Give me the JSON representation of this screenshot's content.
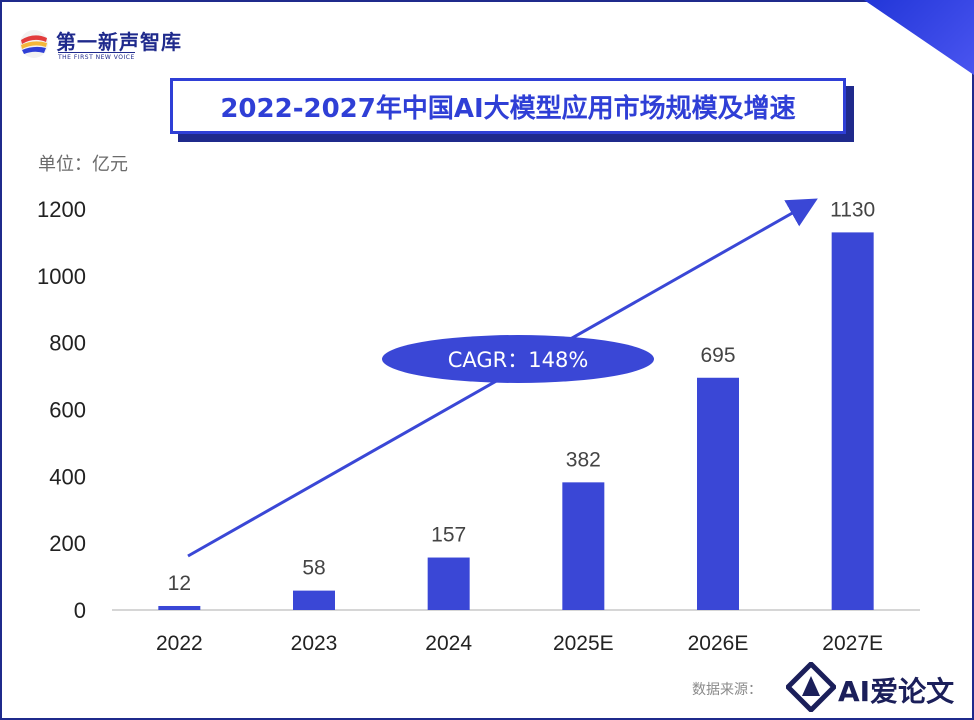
{
  "header": {
    "logo_text": "第一新声智库",
    "logo_sub": "THE FIRST NEW VOICE",
    "title": "2022-2027年中国AI大模型应用市场规模及增速"
  },
  "unit_label": "单位：亿元",
  "source_label": "数据来源：",
  "watermark": {
    "text": "AI爱论文"
  },
  "colors": {
    "bar": "#3a47d6",
    "title": "#2f3fd6",
    "frame": "#1f2a8c",
    "cagr_fill": "#3a47d6"
  },
  "chart_data": {
    "type": "bar",
    "title": "2022-2027年中国AI大模型应用市场规模及增速",
    "ylabel": "单位：亿元",
    "xlabel": "",
    "categories": [
      "2022",
      "2023",
      "2024",
      "2025E",
      "2026E",
      "2027E"
    ],
    "values": [
      12,
      58,
      157,
      382,
      695,
      1130
    ],
    "data_labels": [
      "12",
      "58",
      "157",
      "382",
      "695",
      "1130"
    ],
    "ylim": [
      0,
      1200
    ],
    "yticks": [
      0,
      200,
      400,
      600,
      800,
      1000,
      1200
    ],
    "grid": false,
    "annotation": {
      "text": "CAGR：148%",
      "shape": "ellipse",
      "arrow": "trend arrow rising from 2022 to 2027E"
    }
  }
}
